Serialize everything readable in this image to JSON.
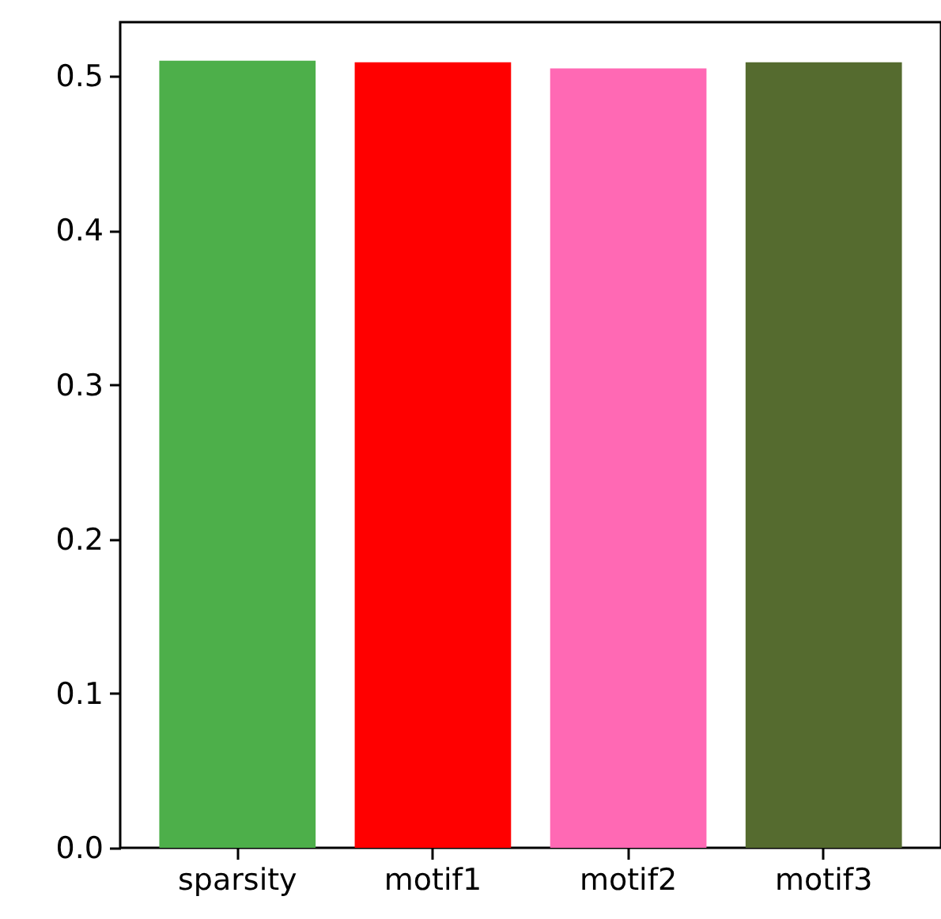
{
  "chart_data": {
    "type": "bar",
    "categories": [
      "sparsity",
      "motif1",
      "motif2",
      "motif3"
    ],
    "values": [
      0.51,
      0.509,
      0.505,
      0.509
    ],
    "colors": [
      "#4daf4a",
      "#ff0000",
      "#ff69b4",
      "#556b2f"
    ],
    "ylim": [
      0,
      0.535
    ],
    "yticks": [
      {
        "value": 0,
        "label": "0.0"
      },
      0.1,
      0.2,
      0.3,
      0.4,
      0.5
    ]
  }
}
